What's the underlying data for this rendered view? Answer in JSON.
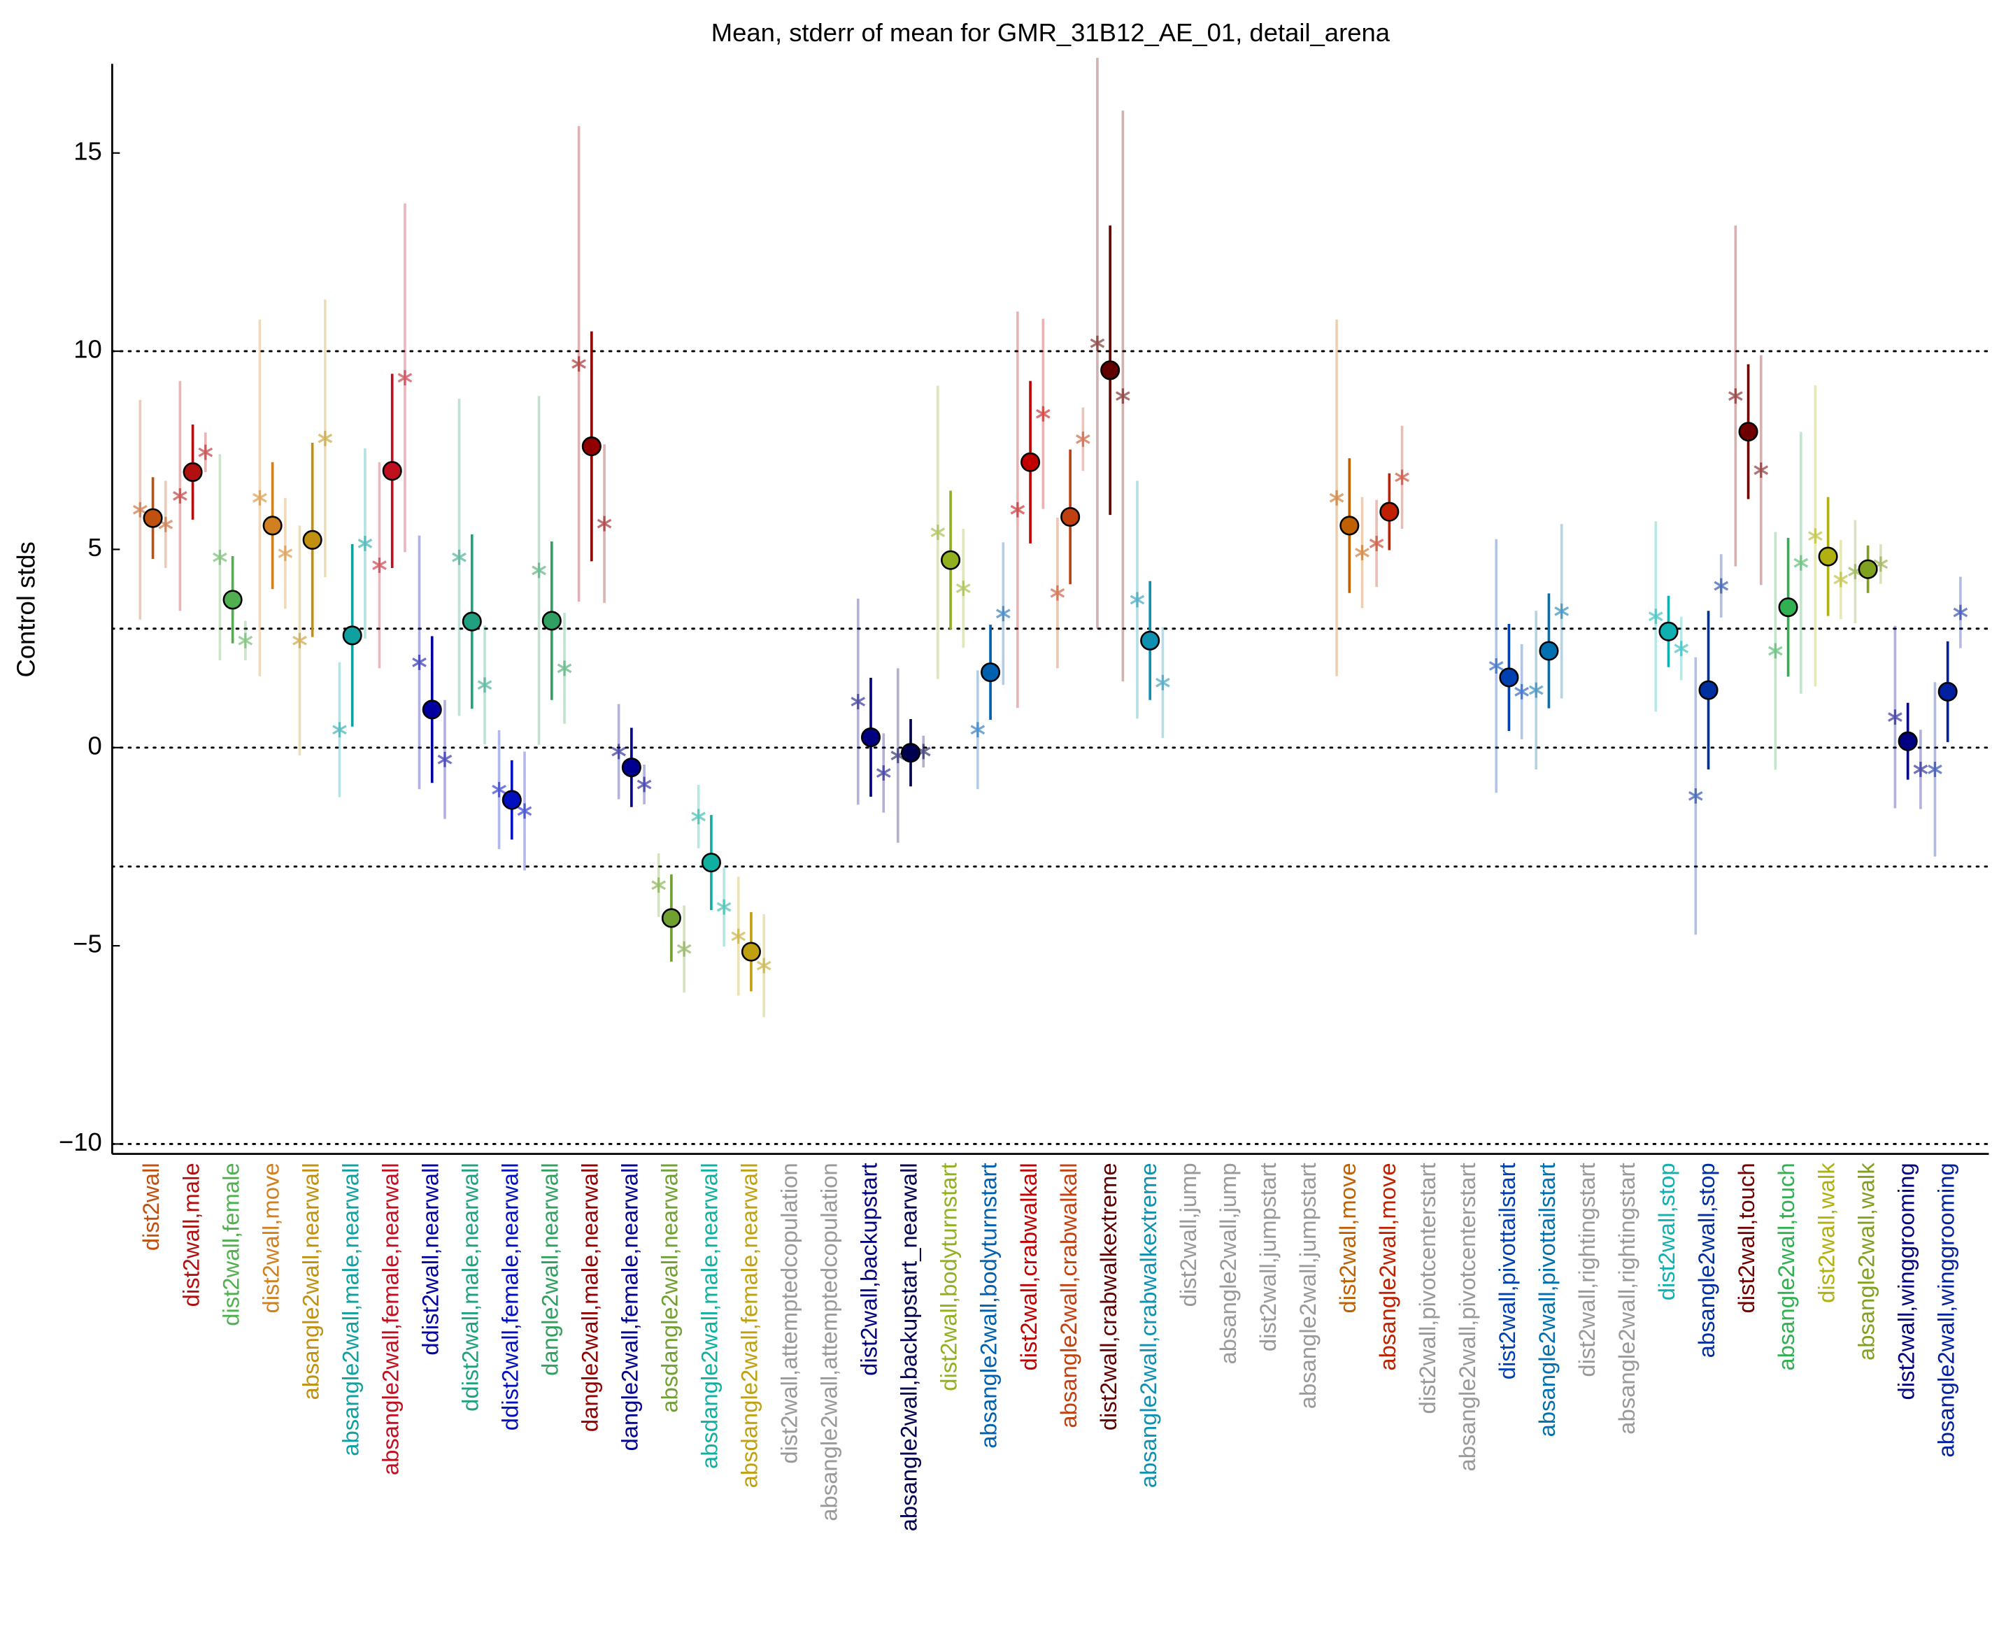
{
  "chart_data": {
    "type": "errorbar",
    "title": "Mean, stderr of mean for GMR_31B12_AE_01, detail_arena",
    "ylabel": "Control stds",
    "ylim": [
      -10.25,
      17.25
    ],
    "yticks": [
      {
        "value": -10,
        "label": "−10"
      },
      {
        "value": -5,
        "label": "−5"
      },
      0,
      5,
      10,
      15
    ],
    "reference_lines": [
      -10,
      -3,
      0,
      3,
      10
    ],
    "categories": [
      "dist2wall",
      "dist2wall,male",
      "dist2wall,female",
      "dist2wall,move",
      "absangle2wall,nearwall",
      "absangle2wall,male,nearwall",
      "absangle2wall,female,nearwall",
      "ddist2wall,nearwall",
      "ddist2wall,male,nearwall",
      "ddist2wall,female,nearwall",
      "dangle2wall,nearwall",
      "dangle2wall,male,nearwall",
      "dangle2wall,female,nearwall",
      "absdangle2wall,nearwall",
      "absdangle2wall,male,nearwall",
      "absdangle2wall,female,nearwall",
      "dist2wall,attemptedcopulation",
      "absangle2wall,attemptedcopulation",
      "dist2wall,backupstart",
      "absangle2wall,backupstart_nearwall",
      "dist2wall,bodyturnstart",
      "absangle2wall,bodyturnstart",
      "dist2wall,crabwalkall",
      "absangle2wall,crabwalkall",
      "dist2wall,crabwalkextreme",
      "absangle2wall,crabwalkextreme",
      "dist2wall,jump",
      "absangle2wall,jump",
      "dist2wall,jumpstart",
      "absangle2wall,jumpstart",
      "dist2wall,move",
      "absangle2wall,move",
      "dist2wall,pivotcenterstart",
      "absangle2wall,pivotcenterstart",
      "dist2wall,pivottailstart",
      "absangle2wall,pivottailstart",
      "dist2wall,rightingstart",
      "absangle2wall,rightingstart",
      "dist2wall,stop",
      "absangle2wall,stop",
      "dist2wall,touch",
      "absangle2wall,touch",
      "dist2wall,walk",
      "absangle2wall,walk",
      "dist2wall,winggrooming",
      "absangle2wall,winggrooming"
    ],
    "colors": [
      "#c05010",
      "#b01010",
      "#50b050",
      "#d08020",
      "#c09010",
      "#10a0a0",
      "#c01020",
      "#0000a0",
      "#20a080",
      "#0010c0",
      "#30a060",
      "#900000",
      "#000090",
      "#70a030",
      "#10b0a0",
      "#c0a010",
      "#999999",
      "#999999",
      "#000080",
      "#000050",
      "#90b020",
      "#0060b0",
      "#c00000",
      "#c04010",
      "#600000",
      "#1090b0",
      "#999999",
      "#999999",
      "#999999",
      "#999999",
      "#c06000",
      "#c02000",
      "#999999",
      "#999999",
      "#0040b0",
      "#0070b0",
      "#999999",
      "#999999",
      "#10b0b0",
      "#0030a0",
      "#700000",
      "#30b050",
      "#b0b010",
      "#80a020",
      "#000080",
      "#0020a0"
    ],
    "values": [
      5.79,
      6.95,
      3.73,
      5.6,
      5.24,
      2.83,
      6.98,
      0.96,
      3.18,
      -1.32,
      3.2,
      7.6,
      -0.5,
      -4.3,
      -2.9,
      -5.15,
      null,
      null,
      0.26,
      -0.13,
      4.73,
      1.9,
      7.2,
      5.82,
      9.52,
      2.7,
      null,
      null,
      null,
      null,
      5.6,
      5.95,
      null,
      null,
      1.77,
      2.44,
      null,
      null,
      2.93,
      1.45,
      7.97,
      3.54,
      4.82,
      4.5,
      0.16,
      1.41
    ],
    "errors": [
      1.03,
      1.2,
      1.1,
      1.6,
      2.45,
      2.3,
      2.45,
      1.85,
      2.2,
      1.0,
      2.0,
      2.9,
      1.0,
      1.1,
      1.2,
      1.0,
      null,
      null,
      1.5,
      0.85,
      1.75,
      1.2,
      2.05,
      1.7,
      3.65,
      1.5,
      null,
      null,
      null,
      null,
      1.7,
      0.97,
      null,
      null,
      1.35,
      1.45,
      null,
      null,
      0.9,
      2.0,
      1.7,
      1.75,
      1.5,
      0.6,
      0.97,
      1.27
    ],
    "male_values": [
      6.0,
      6.35,
      4.8,
      6.3,
      2.7,
      0.45,
      4.6,
      2.15,
      4.8,
      -1.06,
      4.47,
      9.68,
      -0.1,
      -3.47,
      -1.74,
      -4.76,
      null,
      null,
      1.16,
      -0.2,
      5.43,
      0.45,
      6.0,
      3.9,
      10.2,
      3.73,
      null,
      null,
      null,
      null,
      6.3,
      5.15,
      null,
      null,
      2.06,
      1.45,
      null,
      null,
      3.31,
      -1.22,
      8.87,
      2.44,
      5.34,
      4.44,
      0.77,
      -0.55
    ],
    "male_errors": [
      2.77,
      2.9,
      2.6,
      4.5,
      2.9,
      1.7,
      2.6,
      3.2,
      4.0,
      1.5,
      4.4,
      6.0,
      1.2,
      0.8,
      0.8,
      1.5,
      null,
      null,
      2.6,
      2.2,
      3.7,
      1.5,
      5.0,
      1.9,
      7.2,
      3.0,
      null,
      null,
      null,
      null,
      4.5,
      1.1,
      null,
      null,
      3.2,
      2.0,
      null,
      null,
      2.4,
      3.5,
      4.3,
      3.0,
      3.8,
      1.3,
      2.3,
      2.2
    ],
    "female_values": [
      5.63,
      7.45,
      2.7,
      4.9,
      7.8,
      5.15,
      9.33,
      -0.3,
      1.58,
      -1.6,
      2.0,
      5.65,
      -0.93,
      -5.08,
      -4.02,
      -5.5,
      null,
      null,
      -0.64,
      -0.1,
      4.02,
      3.38,
      8.42,
      7.78,
      8.87,
      1.64,
      null,
      null,
      null,
      null,
      4.92,
      6.82,
      null,
      null,
      1.41,
      3.44,
      null,
      null,
      2.5,
      4.08,
      7.0,
      4.66,
      4.24,
      4.63,
      -0.55,
      3.41
    ],
    "female_errors": [
      1.1,
      0.5,
      0.5,
      1.4,
      3.5,
      2.4,
      4.4,
      1.5,
      1.5,
      1.5,
      1.4,
      2.0,
      0.5,
      1.1,
      1.0,
      1.3,
      null,
      null,
      1.0,
      0.4,
      1.5,
      1.8,
      2.4,
      0.8,
      7.2,
      1.4,
      null,
      null,
      null,
      null,
      1.4,
      1.3,
      null,
      null,
      1.2,
      2.2,
      null,
      null,
      0.8,
      0.8,
      2.9,
      3.3,
      1.0,
      0.5,
      1.0,
      0.9
    ]
  }
}
